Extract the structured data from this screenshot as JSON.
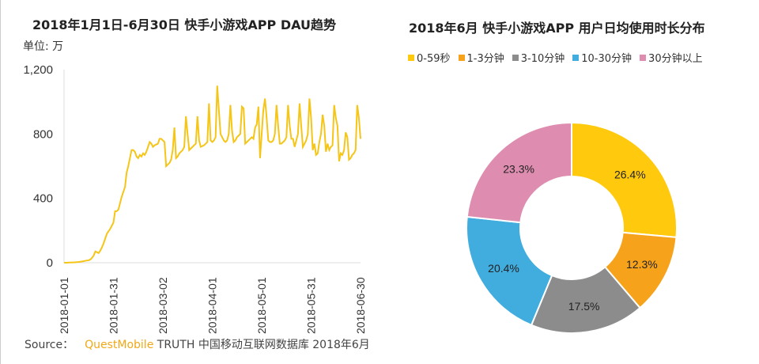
{
  "chart_data": [
    {
      "type": "line",
      "title": "2018年1月1日-6月30日 快手小游戏APP DAU趋势",
      "ylabel": "单位: 万",
      "ylim": [
        0,
        1200
      ],
      "yticks": [
        "0",
        "400",
        "800",
        "1,200"
      ],
      "xticks": [
        "2018-01-01",
        "2018-01-31",
        "2018-03-02",
        "2018-04-01",
        "2018-05-01",
        "2018-05-31",
        "2018-06-30"
      ],
      "x_start": "2018-01-01",
      "x_end": "2018-06-30",
      "color": "#F5C518",
      "values": [
        0,
        0,
        0,
        1,
        1,
        2,
        2,
        3,
        4,
        5,
        6,
        8,
        10,
        12,
        14,
        15,
        20,
        30,
        45,
        70,
        65,
        60,
        75,
        95,
        120,
        150,
        180,
        195,
        210,
        230,
        250,
        320,
        320,
        330,
        370,
        410,
        440,
        470,
        560,
        600,
        650,
        700,
        700,
        690,
        660,
        650,
        670,
        660,
        680,
        670,
        690,
        720,
        750,
        740,
        720,
        730,
        735,
        740,
        770,
        770,
        760,
        750,
        600,
        610,
        620,
        640,
        700,
        840,
        650,
        660,
        680,
        690,
        700,
        720,
        910,
        800,
        700,
        710,
        720,
        730,
        740,
        910,
        760,
        720,
        725,
        730,
        740,
        750,
        990,
        760,
        750,
        760,
        780,
        1100,
        950,
        800,
        780,
        760,
        750,
        760,
        800,
        980,
        820,
        750,
        760,
        780,
        790,
        800,
        970,
        960,
        740,
        750,
        760,
        770,
        780,
        770,
        840,
        860,
        970,
        650,
        800,
        950,
        1020,
        900,
        760,
        750,
        750,
        760,
        800,
        980,
        850,
        740,
        740,
        750,
        760,
        780,
        980,
        850,
        770,
        770,
        720,
        760,
        800,
        990,
        850,
        720,
        740,
        760,
        800,
        1020,
        900,
        700,
        740,
        670,
        680,
        750,
        800,
        920,
        850,
        690,
        740,
        700,
        720,
        730,
        980,
        900,
        850,
        630,
        680,
        670,
        700,
        810,
        780,
        640,
        650,
        670,
        680,
        700,
        980,
        900,
        770
      ]
    },
    {
      "type": "pie",
      "title": "2018年6月 快手小游戏APP 用户日均使用时长分布",
      "donut": true,
      "legend_position": "top",
      "slices": [
        {
          "label": "0-59秒",
          "value": 26.4,
          "text": "26.4%",
          "color": "#FFC90E"
        },
        {
          "label": "1-3分钟",
          "value": 12.3,
          "text": "12.3%",
          "color": "#F7A21B"
        },
        {
          "label": "3-10分钟",
          "value": 17.5,
          "text": "17.5%",
          "color": "#8C8C8C"
        },
        {
          "label": "10-30分钟",
          "value": 20.4,
          "text": "20.4%",
          "color": "#41ADDF"
        },
        {
          "label": "30分钟以上",
          "value": 23.3,
          "text": "23.3%",
          "color": "#DE8DB0"
        }
      ]
    }
  ],
  "source": {
    "label": "Source：",
    "brand": "QuestMobile",
    "text": "TRUTH 中国移动互联网数据库 2018年6月"
  }
}
